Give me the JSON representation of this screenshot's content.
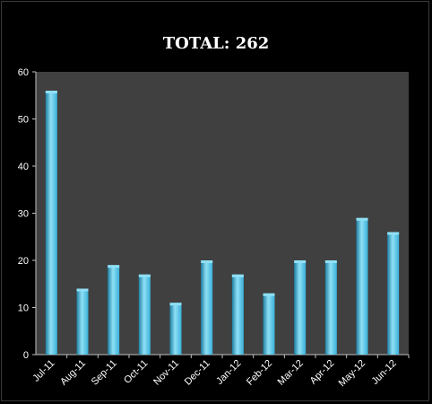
{
  "chart_data": {
    "type": "bar",
    "title": "TOTAL: 262",
    "categories": [
      "Jul-11",
      "Aug-11",
      "Sep-11",
      "Oct-11",
      "Nov-11",
      "Dec-11",
      "Jan-12",
      "Feb-12",
      "Mar-12",
      "Apr-12",
      "May-12",
      "Jun-12"
    ],
    "values": [
      56,
      14,
      19,
      17,
      11,
      20,
      17,
      13,
      20,
      20,
      29,
      26
    ],
    "xlabel": "",
    "ylabel": "",
    "ylim": [
      0,
      60
    ],
    "yticks": [
      0,
      10,
      20,
      30,
      40,
      50,
      60
    ],
    "grid": false,
    "legend": "none",
    "colors": {
      "background": "#000000",
      "plot_area": "#404040",
      "bar": "#3ab0d8",
      "bar_light": "#8fe0f5",
      "bar_dark": "#1f7fa3",
      "text": "#ffffff"
    }
  }
}
